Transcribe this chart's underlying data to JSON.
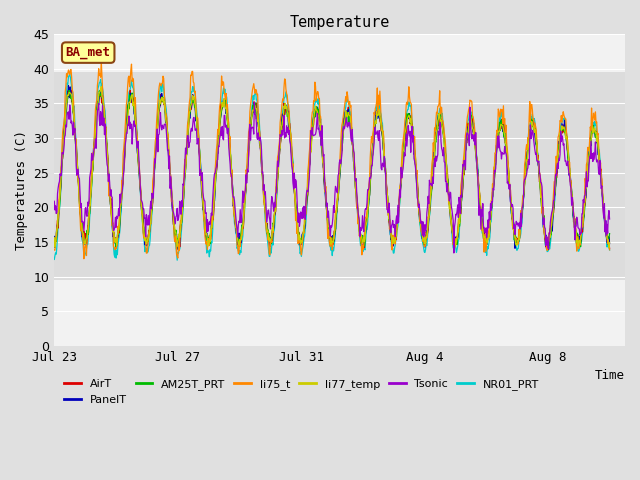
{
  "title": "Temperature",
  "ylabel": "Temperatures (C)",
  "xlabel": "Time",
  "ylim": [
    0,
    45
  ],
  "yticks": [
    0,
    5,
    10,
    15,
    20,
    25,
    30,
    35,
    40,
    45
  ],
  "series": [
    {
      "label": "AirT",
      "color": "#dd0000"
    },
    {
      "label": "PanelT",
      "color": "#0000bb"
    },
    {
      "label": "AM25T_PRT",
      "color": "#00bb00"
    },
    {
      "label": "li75_t",
      "color": "#ff8800"
    },
    {
      "label": "li77_temp",
      "color": "#cccc00"
    },
    {
      "label": "Tsonic",
      "color": "#9900cc"
    },
    {
      "label": "NR01_PRT",
      "color": "#00cccc"
    }
  ],
  "xtick_labels": [
    "Jul 23",
    "Jul 27",
    "Jul 31",
    "Aug 4",
    "Aug 8"
  ],
  "xtick_positions": [
    0,
    4,
    8,
    12,
    16
  ],
  "xlim": [
    0,
    18.5
  ],
  "shaded_low": 9.5,
  "shaded_high": 39.5,
  "annotation": "BA_met",
  "fig_bg": "#e0e0e0",
  "ax_bg": "#f2f2f2",
  "shade_color": "#dcdcdc"
}
